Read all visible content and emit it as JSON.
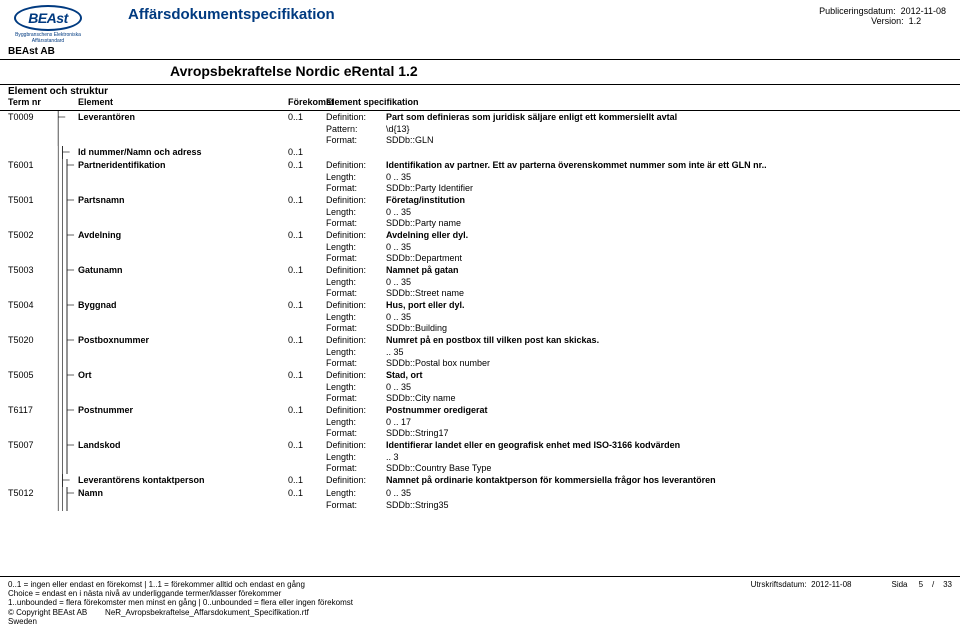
{
  "header": {
    "logo_text": "BEAst",
    "logo_subtext": "Byggbranschens Elektroniska Affärsstandard",
    "doc_title": "Affärsdokumentspecifikation",
    "pub_label": "Publiceringsdatum:",
    "pub_date": "2012-11-08",
    "ver_label": "Version:",
    "ver_value": "1.2",
    "org": "BEAst AB"
  },
  "subtitle": "Avropsbekraftelse Nordic eRental 1.2",
  "columns": {
    "section": "Element och struktur",
    "termnr": "Term nr",
    "element": "Element",
    "forekomst": "Förekomst",
    "elspec": "Element specifikation"
  },
  "rows": [
    {
      "term": "T0009",
      "depth": 2,
      "name": "Leverantören",
      "occ": "0..1",
      "lines": [
        [
          "Definition:",
          "Part som definieras som juridisk säljare enligt ett kommersiellt avtal",
          true
        ],
        [
          "Pattern:",
          "\\d{13}",
          false
        ],
        [
          "Format:",
          "SDDb::GLN",
          false
        ]
      ]
    },
    {
      "term": "",
      "depth": 3,
      "name": "Id nummer/Namn och adress",
      "occ": "0..1",
      "lines": []
    },
    {
      "term": "T6001",
      "depth": 4,
      "name": "Partneridentifikation",
      "occ": "0..1",
      "lines": [
        [
          "Definition:",
          "Identifikation av partner. Ett av parterna överenskommet nummer som inte är ett GLN nr..",
          true
        ],
        [
          "Length:",
          "0  ..  35",
          false
        ],
        [
          "Format:",
          "SDDb::Party Identifier",
          false
        ]
      ]
    },
    {
      "term": "T5001",
      "depth": 4,
      "name": "Partsnamn",
      "occ": "0..1",
      "lines": [
        [
          "Definition:",
          "Företag/institution",
          true
        ],
        [
          "Length:",
          "0  ..  35",
          false
        ],
        [
          "Format:",
          "SDDb::Party name",
          false
        ]
      ]
    },
    {
      "term": "T5002",
      "depth": 4,
      "name": "Avdelning",
      "occ": "0..1",
      "lines": [
        [
          "Definition:",
          "Avdelning eller dyl.",
          true
        ],
        [
          "Length:",
          "0  ..  35",
          false
        ],
        [
          "Format:",
          "SDDb::Department",
          false
        ]
      ]
    },
    {
      "term": "T5003",
      "depth": 4,
      "name": "Gatunamn",
      "occ": "0..1",
      "lines": [
        [
          "Definition:",
          "Namnet på gatan",
          true
        ],
        [
          "Length:",
          "0  ..  35",
          false
        ],
        [
          "Format:",
          "SDDb::Street name",
          false
        ]
      ]
    },
    {
      "term": "T5004",
      "depth": 4,
      "name": "Byggnad",
      "occ": "0..1",
      "lines": [
        [
          "Definition:",
          "Hus, port eller dyl.",
          true
        ],
        [
          "Length:",
          "0  ..  35",
          false
        ],
        [
          "Format:",
          "SDDb::Building",
          false
        ]
      ]
    },
    {
      "term": "T5020",
      "depth": 4,
      "name": "Postboxnummer",
      "occ": "0..1",
      "lines": [
        [
          "Definition:",
          "Numret på en postbox till vilken post kan skickas.",
          true
        ],
        [
          "Length:",
          "   ..  35",
          false
        ],
        [
          "Format:",
          "SDDb::Postal box number",
          false
        ]
      ]
    },
    {
      "term": "T5005",
      "depth": 4,
      "name": "Ort",
      "occ": "0..1",
      "lines": [
        [
          "Definition:",
          "Stad, ort",
          true
        ],
        [
          "Length:",
          "0  ..  35",
          false
        ],
        [
          "Format:",
          "SDDb::City name",
          false
        ]
      ]
    },
    {
      "term": "T6117",
      "depth": 4,
      "name": "Postnummer",
      "occ": "0..1",
      "lines": [
        [
          "Definition:",
          "Postnummer oredigerat",
          true
        ],
        [
          "Length:",
          "0  ..   17",
          false
        ],
        [
          "Format:",
          "SDDb::String17",
          false
        ]
      ]
    },
    {
      "term": "T5007",
      "depth": 4,
      "name": "Landskod",
      "occ": "0..1",
      "lines": [
        [
          "Definition:",
          "Identifierar landet eller en geografisk enhet med ISO-3166 kodvärden",
          true
        ],
        [
          "Length:",
          "   ..   3",
          false
        ],
        [
          "Format:",
          "SDDb::Country Base Type",
          false
        ]
      ]
    },
    {
      "term": "",
      "depth": 3,
      "name": "Leverantörens kontaktperson",
      "occ": "0..1",
      "lines": [
        [
          "Definition:",
          "Namnet på ordinarie kontaktperson för kommersiella frågor hos leverantören",
          true
        ]
      ]
    },
    {
      "term": "T5012",
      "depth": 4,
      "name": "Namn",
      "occ": "0..1",
      "lines": [
        [
          "Length:",
          "0  ..  35",
          false
        ],
        [
          "Format:",
          "SDDb::String35",
          false
        ]
      ]
    }
  ],
  "footer": {
    "l1": "0..1 = ingen eller endast en förekomst | 1..1 = förekommer alltid och endast en gång",
    "l2": "Choice = endast en i nästa nivå av underliggande termer/klasser förekommer",
    "l3": "1..unbounded = flera förekomster men minst en gång | 0..unbounded = flera eller ingen förekomst",
    "l4a": "© Copyright BEAst AB",
    "l4b": "NeR_Avropsbekraftelse_Affarsdokument_Specifikation.rtf",
    "l5": "Sweden",
    "r_date_label": "Utrskriftsdatum:",
    "r_date": "2012-11-08",
    "r_page_label": "Sida",
    "r_page": "5",
    "r_sep": "/",
    "r_total": "33"
  }
}
